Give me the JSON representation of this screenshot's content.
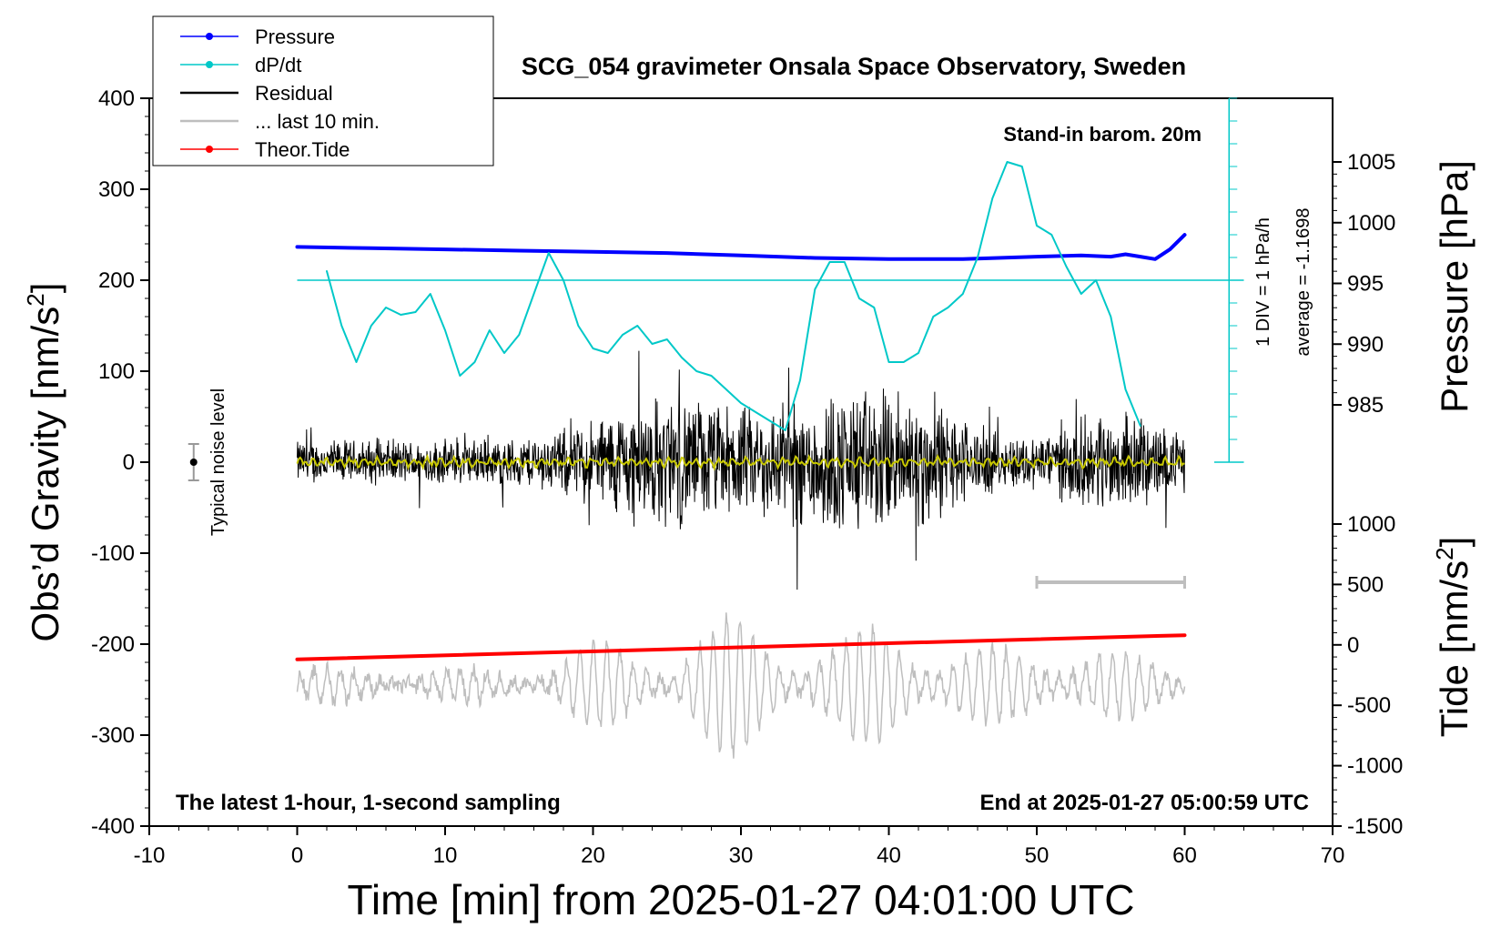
{
  "chart_data": {
    "type": "line",
    "title": "SCG_054 gravimeter Onsala Space Observatory, Sweden",
    "xlabel": "Time [min] from 2025-01-27 04:01:00 UTC",
    "ylabel_left_main": "Obs’d Gravity [nm/s",
    "ylabel_left_sup": "2",
    "ylabel_left_close": "]",
    "ylabel_right_pressure": "Pressure [hPa]",
    "ylabel_right_tide_main": "Tide [nm/s",
    "ylabel_right_tide_sup": "2",
    "ylabel_right_tide_close": "]",
    "xlim": [
      -10,
      70
    ],
    "ylim": [
      -400,
      400
    ],
    "pressure_ylim": [
      985,
      1005
    ],
    "tide_ylim": [
      -1500,
      1000
    ],
    "x_ticks": [
      "-10",
      "0",
      "10",
      "20",
      "30",
      "40",
      "50",
      "60",
      "70"
    ],
    "y_ticks": [
      "400",
      "300",
      "200",
      "100",
      "0",
      "-100",
      "-200",
      "-300",
      "-400"
    ],
    "pressure_ticks": [
      "1005",
      "1000",
      "995",
      "990",
      "985"
    ],
    "tide_ticks": [
      "1000",
      "500",
      "0",
      "-500",
      "-1000",
      "-1500"
    ],
    "legend": [
      {
        "label": "Pressure",
        "color": "#0000ff",
        "marker": true
      },
      {
        "label": "dP/dt",
        "color": "#00c8c8",
        "marker": true
      },
      {
        "label": "Residual",
        "color": "#000000",
        "marker": false
      },
      {
        "label": "... last 10 min.",
        "color": "#bebebe",
        "marker": false
      },
      {
        "label": "Theor.Tide",
        "color": "#ff0000",
        "marker": true
      }
    ],
    "annotations": {
      "barometer": "Stand-in barom. 20m",
      "scale_div": "1 DIV = 1 hPa/h",
      "average": "average = -1.1698",
      "noise": "Typical noise level",
      "bottom_left": "The latest 1-hour, 1-second sampling",
      "bottom_right": "End at 2025-01-27 05:00:59 UTC"
    },
    "series": [
      {
        "name": "Pressure",
        "color": "#0000ff",
        "axis": "pressure",
        "x": [
          0,
          5,
          10,
          15,
          20,
          25,
          30,
          35,
          40,
          45,
          50,
          53,
          55,
          56,
          57,
          58,
          59,
          60
        ],
        "values": [
          998.0,
          997.9,
          997.8,
          997.7,
          997.6,
          997.5,
          997.3,
          997.1,
          997.0,
          997.0,
          997.2,
          997.3,
          997.2,
          997.4,
          997.2,
          997.0,
          997.8,
          999.0
        ]
      },
      {
        "name": "dP/dt",
        "color": "#00c8c8",
        "axis": "gravity",
        "x": [
          2,
          3,
          4,
          5,
          6,
          7,
          8,
          9,
          10,
          11,
          12,
          13,
          14,
          15,
          16,
          17,
          18,
          19,
          20,
          21,
          22,
          23,
          24,
          25,
          26,
          27,
          28,
          29,
          30,
          31,
          32,
          33,
          34,
          35,
          36,
          37,
          38,
          39,
          40,
          41,
          42,
          43,
          44,
          45,
          46,
          47,
          48,
          49,
          50,
          51,
          52,
          53,
          54,
          55,
          56,
          57
        ],
        "values": [
          210,
          150,
          110,
          150,
          170,
          162,
          165,
          185,
          145,
          95,
          110,
          145,
          120,
          140,
          185,
          230,
          200,
          150,
          125,
          120,
          140,
          150,
          130,
          135,
          115,
          100,
          95,
          80,
          65,
          55,
          45,
          35,
          90,
          190,
          220,
          220,
          180,
          170,
          110,
          110,
          120,
          160,
          170,
          185,
          225,
          290,
          330,
          325,
          260,
          250,
          215,
          185,
          200,
          160,
          80,
          40
        ]
      },
      {
        "name": "Theor.Tide",
        "color": "#ff0000",
        "axis": "tide",
        "x": [
          0,
          60
        ],
        "values": [
          -120,
          80
        ]
      }
    ]
  }
}
